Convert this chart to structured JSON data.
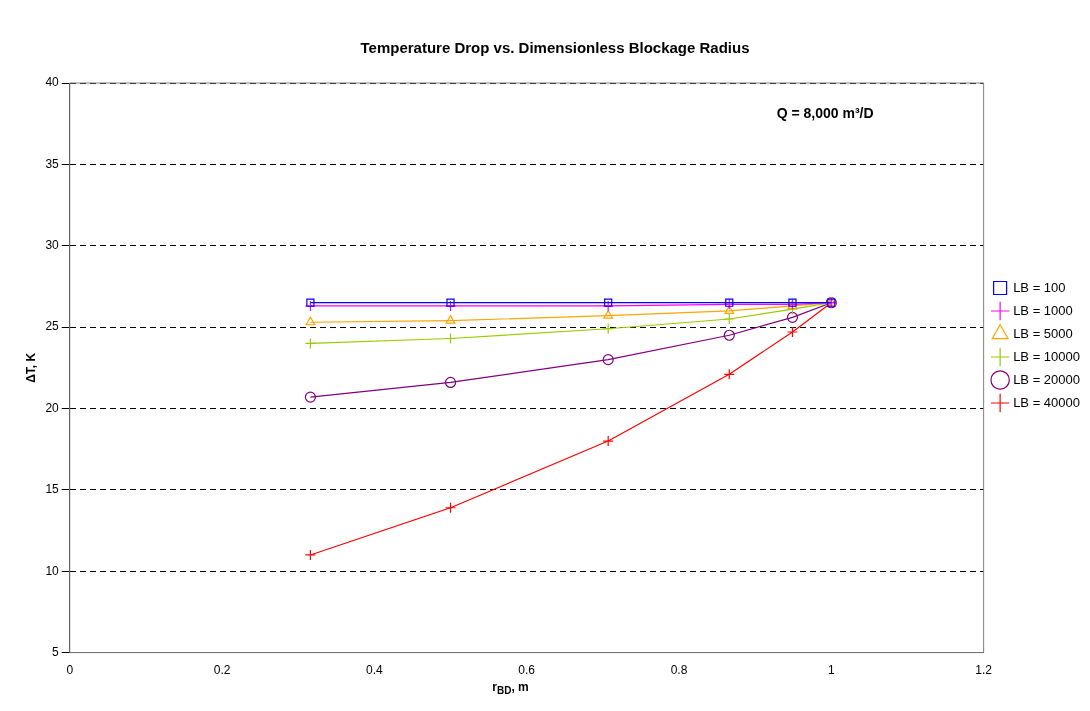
{
  "chart_data": {
    "type": "line",
    "title": "Temperature Drop vs. Dimensionless Blockage Radius",
    "xlabel": "r$_{BD}$, m",
    "ylabel": "ΔT, K",
    "annotations": [
      "Q = 8,000 m³/D"
    ],
    "x": [
      0.316,
      0.5,
      0.707,
      0.866,
      0.949,
      1
    ],
    "series": [
      {
        "name": "LB = 100",
        "color": "#0000ff",
        "marker": "square",
        "values": [
          26.5,
          26.5,
          26.5,
          26.5,
          26.5,
          26.5
        ]
      },
      {
        "name": "LB = 1000",
        "color": "#ff00ff",
        "marker": "cross",
        "values": [
          26.3,
          26.3,
          26.3,
          26.4,
          26.4,
          26.5
        ]
      },
      {
        "name": "LB = 5000",
        "color": "#ffa500",
        "marker": "triangle",
        "values": [
          25.3,
          25.4,
          25.7,
          26.0,
          26.3,
          26.5
        ]
      },
      {
        "name": "LB = 10000",
        "color": "#99cc00",
        "marker": "cross",
        "values": [
          24.0,
          24.3,
          24.9,
          25.5,
          26.1,
          26.5
        ]
      },
      {
        "name": "LB = 20000",
        "color": "#800080",
        "marker": "circle",
        "values": [
          20.7,
          21.6,
          23.0,
          24.5,
          25.6,
          26.5
        ]
      },
      {
        "name": "LB = 40000",
        "color": "#ff0000",
        "marker": "cross",
        "values": [
          11.0,
          13.9,
          18.0,
          22.1,
          24.7,
          26.5
        ]
      }
    ],
    "xlim": [
      0,
      1.2
    ],
    "xticks": [
      0,
      0.2,
      0.4,
      0.6,
      0.8,
      1,
      1.2
    ],
    "ylim": [
      5,
      40
    ],
    "yticks": [
      5,
      10,
      15,
      20,
      25,
      30,
      35,
      40
    ],
    "grid": "y",
    "legend": "right",
    "line_style": "solid"
  }
}
